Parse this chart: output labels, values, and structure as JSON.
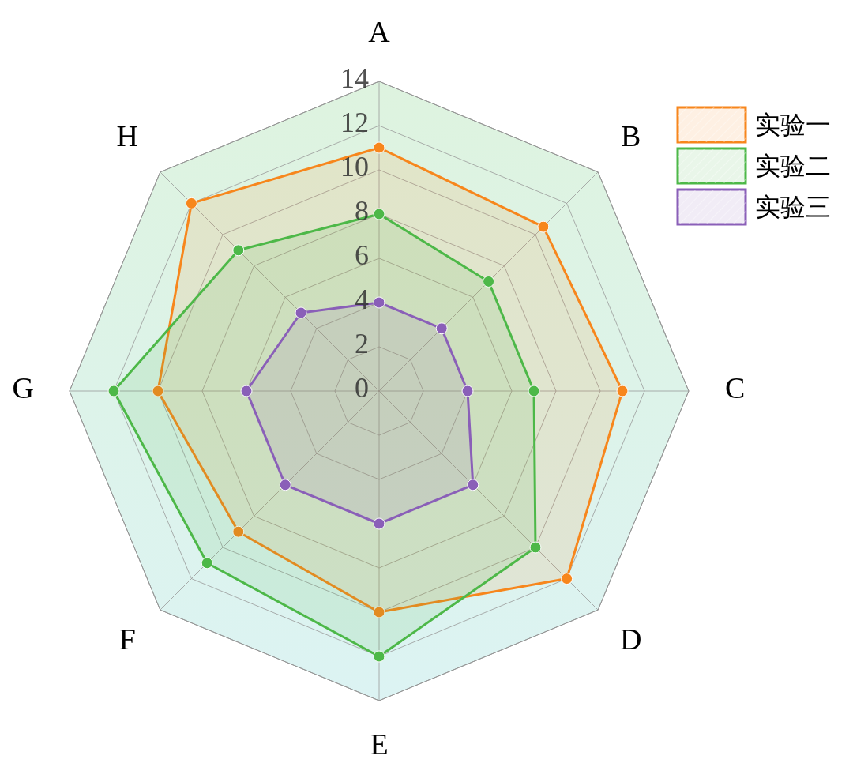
{
  "chart_data": {
    "type": "radar",
    "categories": [
      "A",
      "B",
      "C",
      "D",
      "E",
      "F",
      "G",
      "H"
    ],
    "series": [
      {
        "name": "实验一",
        "color": "#f7861c",
        "values": [
          11,
          10.5,
          11,
          12,
          10,
          9,
          10,
          12
        ]
      },
      {
        "name": "实验二",
        "color": "#4db848",
        "values": [
          8,
          7,
          7,
          10,
          12,
          11,
          12,
          9
        ]
      },
      {
        "name": "实验三",
        "color": "#8a5fb8",
        "values": [
          4,
          4,
          4,
          6,
          6,
          6,
          6,
          5
        ]
      }
    ],
    "ylim": [
      0,
      14
    ],
    "yticks": [
      0,
      2,
      4,
      6,
      8,
      10,
      12,
      14
    ],
    "grid": true,
    "legend": "top right",
    "marker": "circle",
    "line_style": "solid"
  }
}
